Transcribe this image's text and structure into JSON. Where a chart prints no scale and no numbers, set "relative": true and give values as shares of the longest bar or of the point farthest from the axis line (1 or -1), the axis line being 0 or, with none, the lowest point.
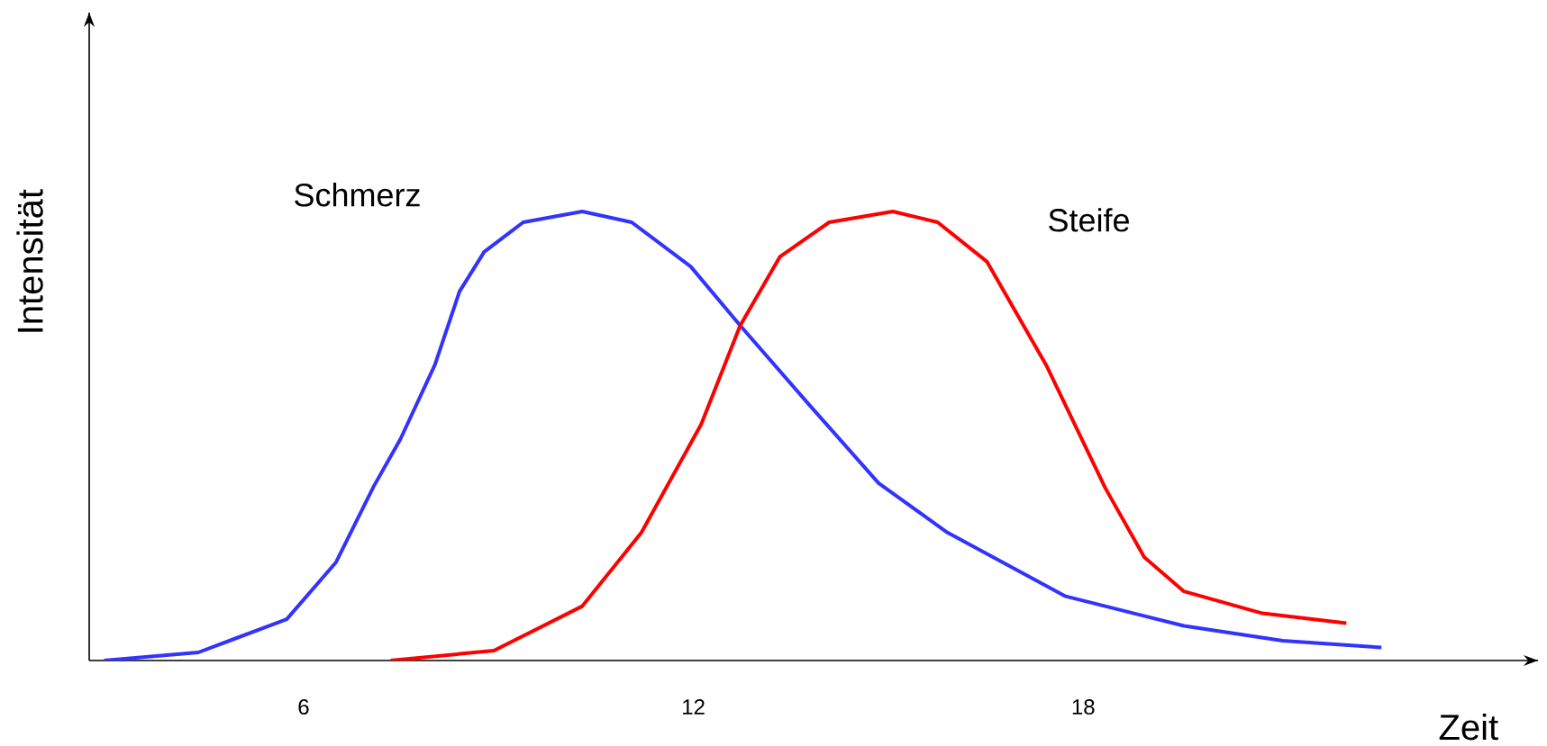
{
  "chart_data": {
    "type": "line",
    "relative": true,
    "xlabel": "Zeit",
    "ylabel": "Intensität",
    "xlim": [
      2.7,
      25.0
    ],
    "xticks": [
      6,
      12,
      18
    ],
    "grid": false,
    "legend": false,
    "marker": "none",
    "line_style": "solid",
    "series": [
      {
        "name": "Schmerz",
        "color": "#3333ff",
        "x": [
          2.93,
          4.38,
          5.74,
          6.5,
          7.08,
          7.49,
          8.02,
          8.4,
          8.78,
          9.38,
          10.29,
          11.05,
          11.96,
          12.72,
          13.78,
          14.85,
          15.91,
          17.73,
          19.55,
          21.07,
          22.59
        ],
        "values": [
          0,
          0.018,
          0.092,
          0.219,
          0.388,
          0.493,
          0.658,
          0.822,
          0.91,
          0.976,
          1.0,
          0.976,
          0.877,
          0.746,
          0.57,
          0.395,
          0.285,
          0.143,
          0.077,
          0.044,
          0.029
        ]
      },
      {
        "name": "Steife",
        "color": "#ff0000",
        "x": [
          7.34,
          8.93,
          10.29,
          11.2,
          12.12,
          12.72,
          13.33,
          14.09,
          15.07,
          15.76,
          16.52,
          17.43,
          18.34,
          18.94,
          19.55,
          20.76,
          22.05
        ],
        "values": [
          0,
          0.022,
          0.121,
          0.285,
          0.526,
          0.746,
          0.899,
          0.976,
          1.0,
          0.976,
          0.888,
          0.658,
          0.384,
          0.23,
          0.154,
          0.105,
          0.083
        ]
      }
    ]
  }
}
